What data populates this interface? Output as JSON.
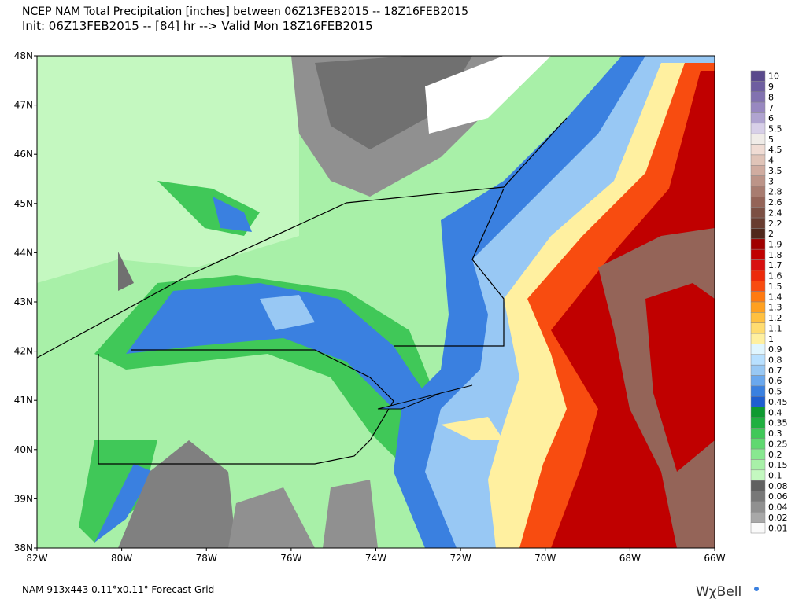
{
  "header": {
    "title": "NCEP NAM Total Precipitation [inches] between 06Z13FEB2015 -- 18Z16FEB2015",
    "subtitle": "Init: 06Z13FEB2015 -- [84] hr --> Valid Mon 18Z16FEB2015"
  },
  "map": {
    "lat_labels": [
      "48N",
      "47N",
      "46N",
      "45N",
      "44N",
      "43N",
      "42N",
      "41N",
      "40N",
      "39N",
      "38N"
    ],
    "lon_labels": [
      "82W",
      "80W",
      "78W",
      "76W",
      "74W",
      "72W",
      "70W",
      "68W",
      "66W"
    ]
  },
  "legend": {
    "items": [
      {
        "label": "10",
        "color": "#5a4a8c"
      },
      {
        "label": "9",
        "color": "#6e5ea0"
      },
      {
        "label": "8",
        "color": "#8272b0"
      },
      {
        "label": "7",
        "color": "#9888c0"
      },
      {
        "label": "6",
        "color": "#b0a4d0"
      },
      {
        "label": "5.5",
        "color": "#d8d0e8"
      },
      {
        "label": "5",
        "color": "#f0ece8"
      },
      {
        "label": "4.5",
        "color": "#f0dcd4"
      },
      {
        "label": "4",
        "color": "#e0c4b8"
      },
      {
        "label": "3.5",
        "color": "#d0aca0"
      },
      {
        "label": "3",
        "color": "#bc9488"
      },
      {
        "label": "2.8",
        "color": "#a87c70"
      },
      {
        "label": "2.6",
        "color": "#946458"
      },
      {
        "label": "2.4",
        "color": "#7c5044"
      },
      {
        "label": "2.2",
        "color": "#683c30"
      },
      {
        "label": "2",
        "color": "#50281c"
      },
      {
        "label": "1.9",
        "color": "#a00000"
      },
      {
        "label": "1.8",
        "color": "#c00000"
      },
      {
        "label": "1.7",
        "color": "#d81010"
      },
      {
        "label": "1.6",
        "color": "#ec2a0a"
      },
      {
        "label": "1.5",
        "color": "#f84c10"
      },
      {
        "label": "1.4",
        "color": "#ff7a10"
      },
      {
        "label": "1.3",
        "color": "#ffa020"
      },
      {
        "label": "1.2",
        "color": "#ffc040"
      },
      {
        "label": "1.1",
        "color": "#ffdc70"
      },
      {
        "label": "1",
        "color": "#fff0a0"
      },
      {
        "label": "0.9",
        "color": "#e0f6ff"
      },
      {
        "label": "0.8",
        "color": "#b8e0ff"
      },
      {
        "label": "0.7",
        "color": "#98c8f4"
      },
      {
        "label": "0.6",
        "color": "#6aa8ee"
      },
      {
        "label": "0.5",
        "color": "#3a80e0"
      },
      {
        "label": "0.45",
        "color": "#1e5ed0"
      },
      {
        "label": "0.4",
        "color": "#0e9a30"
      },
      {
        "label": "0.35",
        "color": "#20b040"
      },
      {
        "label": "0.3",
        "color": "#40c858"
      },
      {
        "label": "0.25",
        "color": "#60d870"
      },
      {
        "label": "0.2",
        "color": "#88e890"
      },
      {
        "label": "0.15",
        "color": "#a8f0a8"
      },
      {
        "label": "0.1",
        "color": "#c4f8c0"
      },
      {
        "label": "0.08",
        "color": "#606060"
      },
      {
        "label": "0.06",
        "color": "#787878"
      },
      {
        "label": "0.04",
        "color": "#909090"
      },
      {
        "label": "0.02",
        "color": "#a8a8a8"
      },
      {
        "label": "0.01",
        "color": "#fafafa"
      }
    ]
  },
  "footer": {
    "grid": "NAM 913x443 0.11°x0.11° Forecast Grid",
    "brand": "WχBell"
  }
}
